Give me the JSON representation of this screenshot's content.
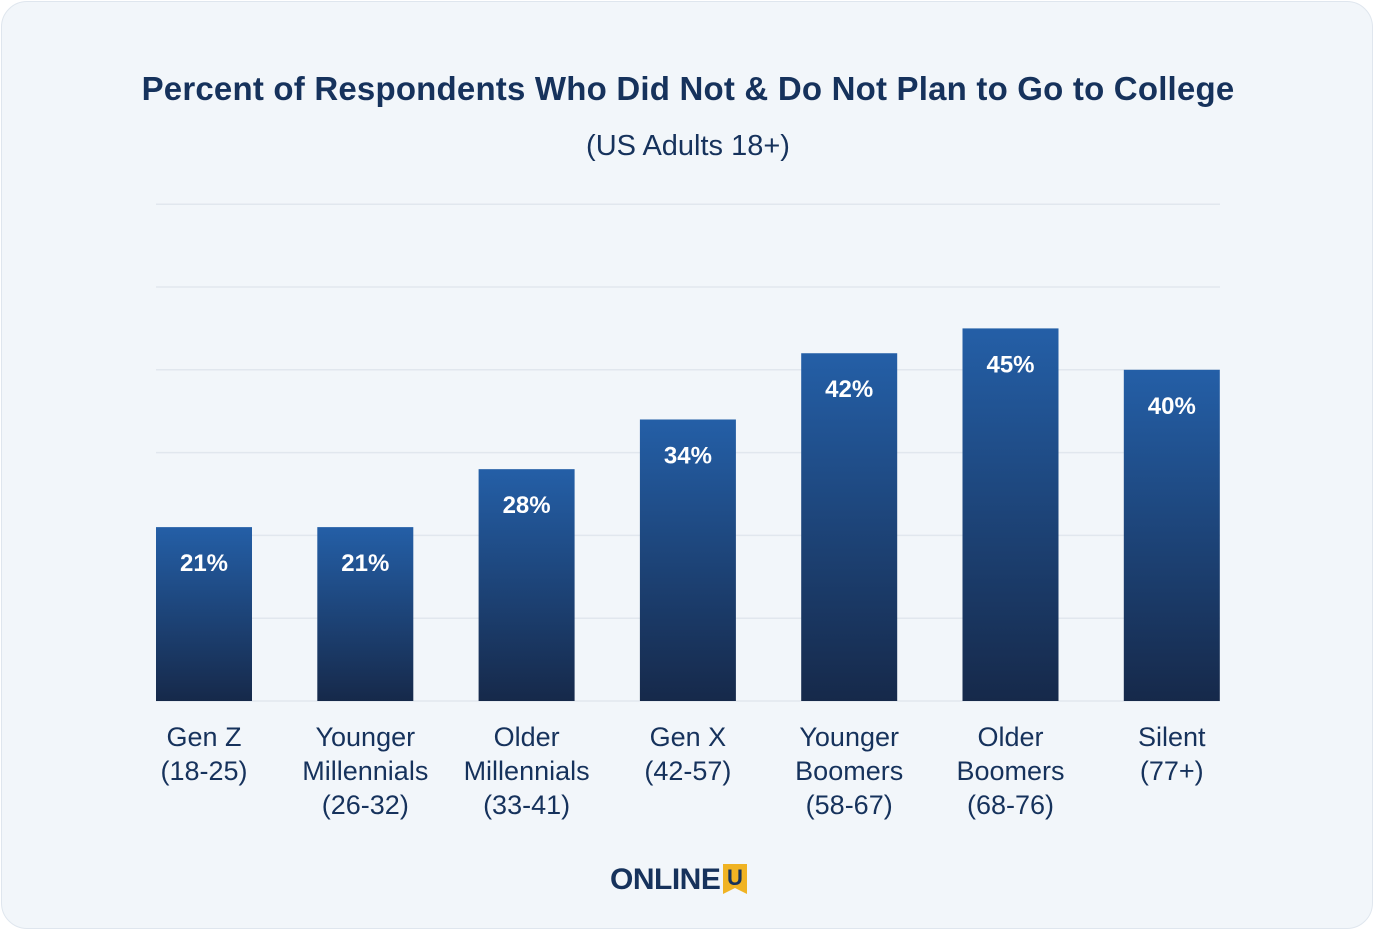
{
  "title": "Percent of Respondents Who Did Not & Do Not Plan to Go to College",
  "subtitle": "(US Adults 18+)",
  "logo": {
    "text": "ONLINE",
    "badge_letter": "U",
    "brand_color": "#16325c",
    "badge_color": "#f0b323"
  },
  "colors": {
    "bar_top": "#245fa7",
    "bar_bottom": "#16294a",
    "grid": "#e1e7ee",
    "label": "#16325c",
    "value_label": "#ffffff"
  },
  "chart_data": {
    "type": "bar",
    "title": "Percent of Respondents Who Did Not & Do Not Plan to Go to College",
    "subtitle": "(US Adults 18+)",
    "categories": [
      [
        "Gen Z",
        "(18-25)"
      ],
      [
        "Younger",
        "Millennials",
        "(26-32)"
      ],
      [
        "Older",
        "Millennials",
        "(33-41)"
      ],
      [
        "Gen X",
        "(42-57)"
      ],
      [
        "Younger",
        "Boomers",
        "(58-67)"
      ],
      [
        "Older",
        "Boomers",
        "(68-76)"
      ],
      [
        "Silent",
        "(77+)"
      ]
    ],
    "values": [
      21,
      21,
      28,
      34,
      42,
      45,
      40
    ],
    "value_labels": [
      "21%",
      "21%",
      "28%",
      "34%",
      "42%",
      "45%",
      "40%"
    ],
    "ylim": [
      0,
      60
    ],
    "ytick_step": 10,
    "grid": true,
    "y_axis_labels_shown": false,
    "legend": "none"
  }
}
